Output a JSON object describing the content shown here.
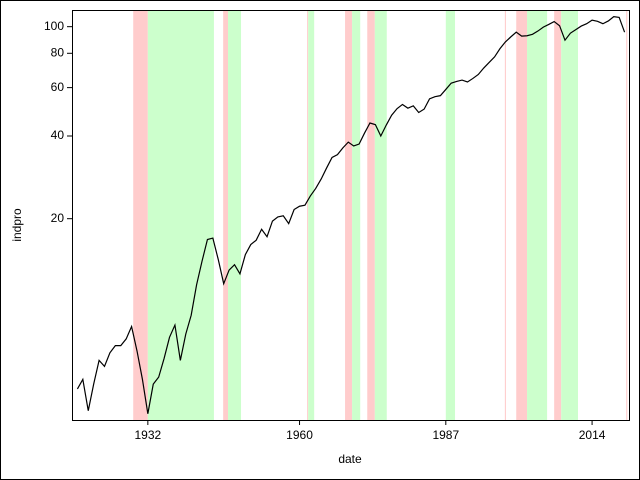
{
  "chart_data": {
    "type": "line",
    "xlabel": "date",
    "ylabel": "indpro",
    "x": [
      1919,
      1920,
      1921,
      1922,
      1923,
      1924,
      1925,
      1926,
      1927,
      1928,
      1929,
      1930,
      1931,
      1932,
      1933,
      1934,
      1935,
      1936,
      1937,
      1938,
      1939,
      1940,
      1941,
      1942,
      1943,
      1944,
      1945,
      1946,
      1947,
      1948,
      1949,
      1950,
      1951,
      1952,
      1953,
      1954,
      1955,
      1956,
      1957,
      1958,
      1959,
      1960,
      1961,
      1962,
      1963,
      1964,
      1965,
      1966,
      1967,
      1968,
      1969,
      1970,
      1971,
      1972,
      1973,
      1974,
      1975,
      1976,
      1977,
      1978,
      1979,
      1980,
      1981,
      1982,
      1983,
      1984,
      1985,
      1986,
      1987,
      1988,
      1989,
      1990,
      1991,
      1992,
      1993,
      1994,
      1995,
      1996,
      1997,
      1998,
      1999,
      2000,
      2001,
      2002,
      2003,
      2004,
      2005,
      2006,
      2007,
      2008,
      2009,
      2010,
      2011,
      2012,
      2013,
      2014,
      2015,
      2016,
      2017,
      2018,
      2019,
      2020
    ],
    "series": [
      {
        "color": "#000000",
        "values": [
          4.8,
          5.2,
          4.0,
          5.0,
          6.1,
          5.8,
          6.5,
          6.9,
          6.9,
          7.3,
          8.1,
          6.6,
          5.2,
          3.9,
          5.0,
          5.3,
          6.2,
          7.4,
          8.2,
          6.1,
          7.6,
          8.9,
          11.5,
          14.0,
          16.8,
          17.0,
          14.2,
          11.6,
          13.0,
          13.6,
          12.6,
          14.8,
          16.1,
          16.7,
          18.3,
          17.2,
          19.6,
          20.3,
          20.5,
          19.2,
          21.6,
          22.2,
          22.4,
          24.2,
          25.8,
          27.9,
          30.6,
          33.4,
          34.2,
          36.2,
          38.0,
          36.8,
          37.4,
          41.0,
          44.6,
          44.0,
          40.0,
          43.8,
          47.6,
          50.3,
          52.1,
          50.5,
          51.5,
          48.7,
          50.1,
          54.6,
          55.6,
          56.1,
          59.1,
          62.3,
          63.2,
          63.9,
          62.9,
          64.8,
          67.0,
          70.7,
          74.1,
          77.6,
          83.2,
          88.0,
          91.8,
          95.5,
          92.4,
          92.7,
          93.8,
          96.4,
          99.6,
          101.9,
          104.4,
          100.8,
          89.3,
          94.7,
          97.6,
          100.5,
          102.5,
          105.6,
          104.6,
          102.5,
          104.9,
          108.8,
          108.1,
          95.5
        ]
      }
    ],
    "bands": [
      {
        "start": 1929.3,
        "end": 1932.0,
        "color": "#ffcccc"
      },
      {
        "start": 1932.0,
        "end": 1944.2,
        "color": "#ccffcc"
      },
      {
        "start": 1945.9,
        "end": 1946.8,
        "color": "#ffcccc"
      },
      {
        "start": 1946.8,
        "end": 1949.2,
        "color": "#ccffcc"
      },
      {
        "start": 1961.4,
        "end": 1961.6,
        "color": "#ffcccc"
      },
      {
        "start": 1961.6,
        "end": 1962.7,
        "color": "#ccffcc"
      },
      {
        "start": 1968.4,
        "end": 1969.7,
        "color": "#ffcccc"
      },
      {
        "start": 1969.7,
        "end": 1971.2,
        "color": "#ccffcc"
      },
      {
        "start": 1972.5,
        "end": 1973.9,
        "color": "#ffcccc"
      },
      {
        "start": 1973.9,
        "end": 1976.1,
        "color": "#ccffcc"
      },
      {
        "start": 1987.0,
        "end": 1988.7,
        "color": "#ccffcc"
      },
      {
        "start": 1997.9,
        "end": 1998.1,
        "color": "#ffcccc"
      },
      {
        "start": 2000.0,
        "end": 2002.0,
        "color": "#ffcccc"
      },
      {
        "start": 2002.0,
        "end": 2005.7,
        "color": "#ccffcc"
      },
      {
        "start": 2007.0,
        "end": 2008.3,
        "color": "#ffcccc"
      },
      {
        "start": 2008.3,
        "end": 2011.4,
        "color": "#ccffcc"
      },
      {
        "start": 2020.3,
        "end": 2020.5,
        "color": "#ffcccc"
      }
    ],
    "xlim": [
      1918,
      2021
    ],
    "xticks": [
      1932,
      1960,
      1987,
      2014
    ],
    "ylim": [
      3.7,
      115
    ],
    "yticks": [
      20,
      40,
      60,
      80,
      100
    ],
    "ylog": true
  }
}
